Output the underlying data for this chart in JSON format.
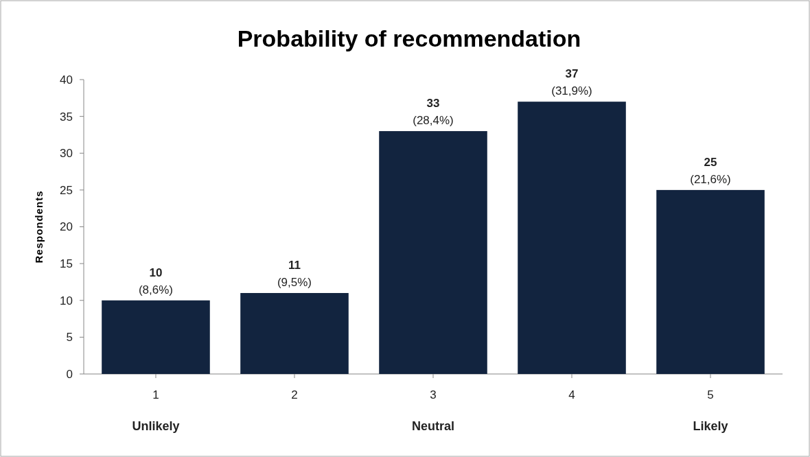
{
  "chart_data": {
    "type": "bar",
    "title": "Probability of recommendation",
    "ylabel": "Respondents",
    "categories": [
      "1",
      "2",
      "3",
      "4",
      "5"
    ],
    "values": [
      10,
      11,
      33,
      37,
      25
    ],
    "value_labels": [
      "10\n(8,6%)",
      "11\n(9,5%)",
      "33\n(28,4%)",
      "37\n(31,9%)",
      "25\n(21,6%)"
    ],
    "color": "#12243f",
    "ylim": [
      0,
      40
    ],
    "yticks": [
      0,
      5,
      10,
      15,
      20,
      25,
      30,
      35,
      40
    ],
    "grid": false,
    "annotations": [
      "Unlikely",
      "Neutral",
      "Likely"
    ]
  }
}
